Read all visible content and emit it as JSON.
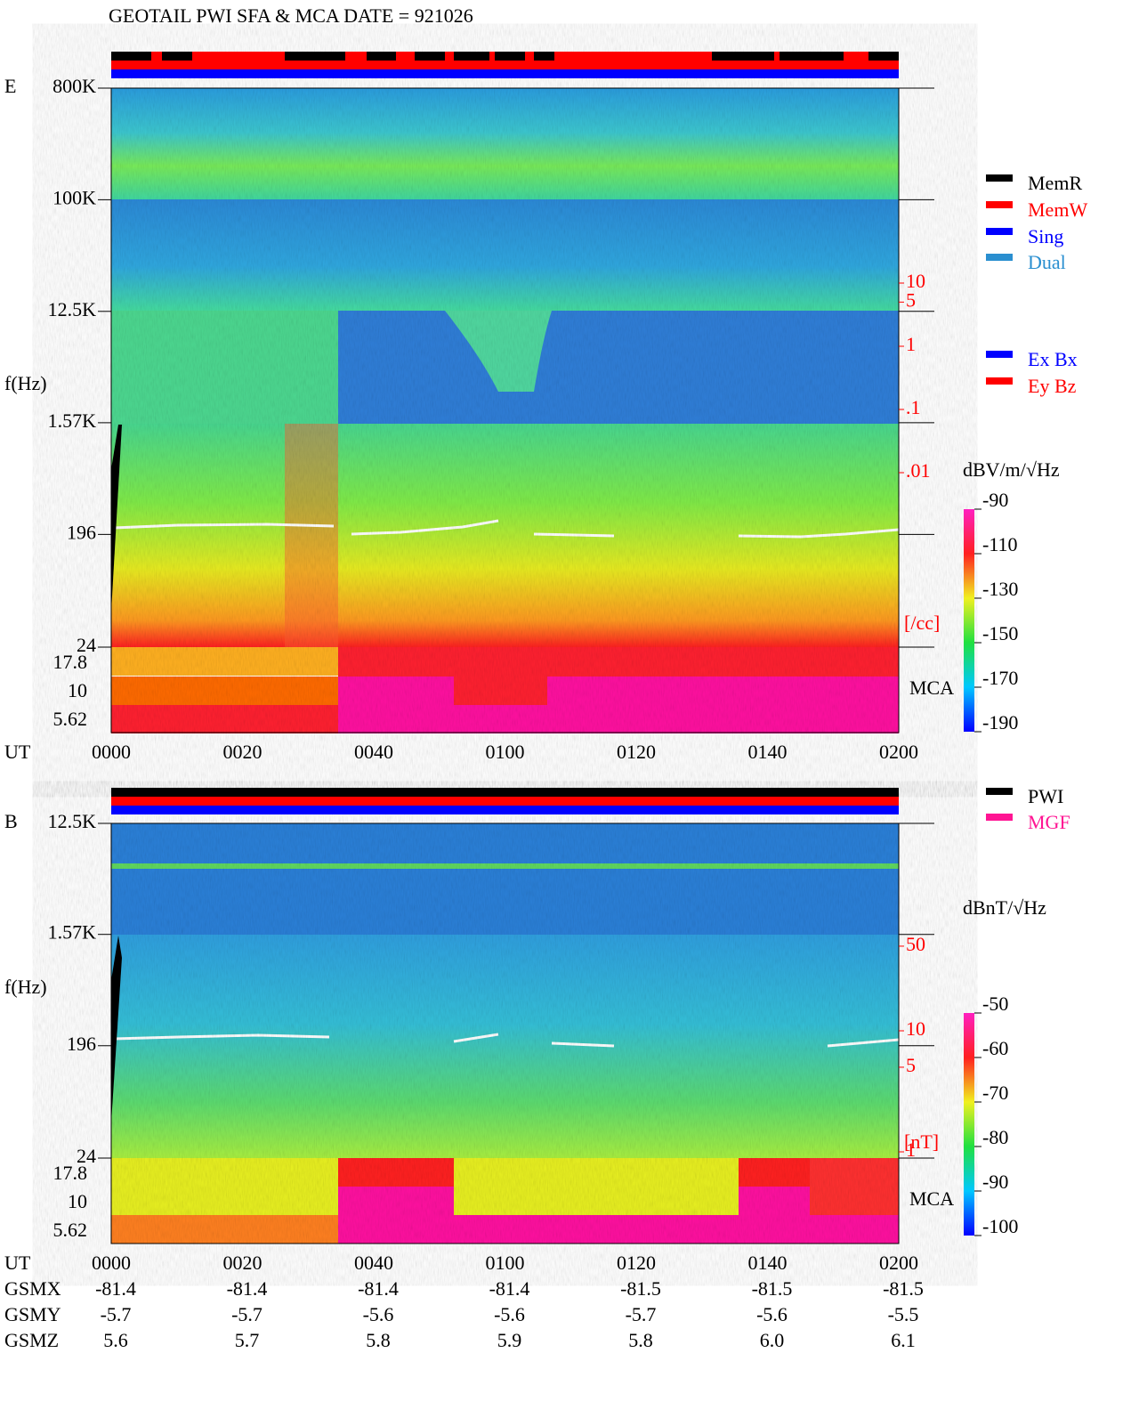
{
  "title": "GEOTAIL  PWI SFA & MCA   DATE = 921026",
  "legend_mem": [
    {
      "name": "MemR",
      "color": "#000000"
    },
    {
      "name": "MemW",
      "color": "#ff0000"
    },
    {
      "name": "Sing",
      "color": "#0000ff"
    },
    {
      "name": "Dual",
      "color": "#2a8fd0"
    }
  ],
  "legend_ant": [
    {
      "name": "Ex Bx",
      "color": "#0000ff"
    },
    {
      "name": "Ey Bz",
      "color": "#ff0000"
    }
  ],
  "legend_src": [
    {
      "name": "PWI",
      "color": "#000000"
    },
    {
      "name": "MGF",
      "color": "#ff1493"
    }
  ],
  "panels": [
    {
      "label": "E",
      "ylabel": "f(Hz)",
      "scale": "log",
      "ylim": [
        24,
        800000
      ],
      "yticks": [
        {
          "value": 800000,
          "label": "800K"
        },
        {
          "value": 100000,
          "label": "100K"
        },
        {
          "value": 12500,
          "label": "12.5K"
        },
        {
          "value": 1570,
          "label": "1.57K"
        },
        196,
        24
      ],
      "mca_label": "MCA",
      "mca_ticks": [
        17.8,
        10,
        5.62
      ],
      "density_ticks": [
        10,
        5,
        1,
        {
          "value": 0.1,
          "label": ".1"
        },
        {
          "value": 0.01,
          "label": ".01"
        }
      ],
      "density_unit": "[/cc]",
      "cbar_unit": "dBV/m/√Hz",
      "clim": [
        -190,
        -90
      ],
      "cticks": [
        -90,
        -110,
        -130,
        -150,
        -170,
        -190
      ]
    },
    {
      "label": "B",
      "ylabel": "f(Hz)",
      "scale": "log",
      "ylim": [
        24,
        12500
      ],
      "yticks": [
        {
          "value": 12500,
          "label": "12.5K"
        },
        {
          "value": 1570,
          "label": "1.57K"
        },
        196,
        24
      ],
      "mca_label": "MCA",
      "mca_ticks": [
        17.8,
        10,
        5.62
      ],
      "density_ticks": [
        50,
        10,
        5,
        1
      ],
      "density_unit": "[nT]",
      "cbar_unit": "dBnT/√Hz",
      "clim": [
        -100,
        -50
      ],
      "cticks": [
        -50,
        -60,
        -70,
        -80,
        -90,
        -100
      ]
    }
  ],
  "xlabel": "UT",
  "xticks": [
    "0000",
    "0020",
    "0040",
    "0100",
    "0120",
    "0140",
    "0200"
  ],
  "orbit": [
    {
      "name": "GSMX",
      "values": [
        -81.4,
        -81.4,
        -81.4,
        -81.4,
        -81.5,
        -81.5,
        -81.5
      ]
    },
    {
      "name": "GSMY",
      "values": [
        -5.7,
        -5.7,
        -5.6,
        -5.6,
        -5.7,
        -5.6,
        -5.5
      ]
    },
    {
      "name": "GSMZ",
      "values": [
        5.6,
        5.7,
        5.8,
        5.9,
        5.8,
        {
          "value": 6,
          "label": "6.0"
        },
        6.1
      ]
    }
  ]
}
